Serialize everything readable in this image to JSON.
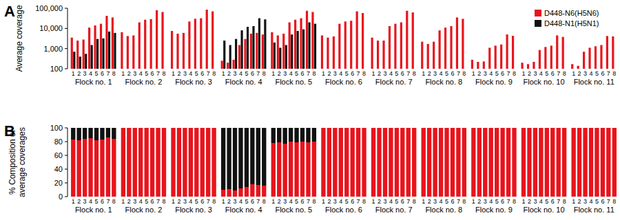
{
  "chart_data": [
    {
      "type": "bar",
      "title": "A",
      "ylabel": "Average coverage",
      "log": "y",
      "ylim": [
        100,
        100000
      ],
      "yticks": [
        100,
        {
          "value": 1000,
          "label": "1,000"
        },
        {
          "value": 10000,
          "label": "10,000"
        },
        {
          "value": 100000,
          "label": "100,000"
        }
      ],
      "categories": [
        "1",
        "2",
        "3",
        "4",
        "5",
        "6",
        "7",
        "8",
        "1",
        "2",
        "3",
        "4",
        "5",
        "6",
        "7",
        "8",
        "1",
        "2",
        "3",
        "4",
        "5",
        "6",
        "7",
        "8",
        "1",
        "2",
        "3",
        "4",
        "5",
        "6",
        "7",
        "8",
        "1",
        "2",
        "3",
        "4",
        "5",
        "6",
        "7",
        "8",
        "1",
        "2",
        "3",
        "4",
        "5",
        "6",
        "7",
        "8",
        "1",
        "2",
        "3",
        "4",
        "5",
        "6",
        "7",
        "8",
        "1",
        "2",
        "3",
        "4",
        "5",
        "6",
        "7",
        "8",
        "1",
        "2",
        "3",
        "4",
        "5",
        "6",
        "7",
        "8",
        "1",
        "2",
        "3",
        "4",
        "5",
        "6",
        "7",
        "8",
        "1",
        "2",
        "3",
        "4",
        "5",
        "6",
        "7",
        "8"
      ],
      "groups": [
        "Flock no. 1",
        "Flock no. 2",
        "Flock no. 3",
        "Flock no. 4",
        "Flock no. 5",
        "Flock no. 6",
        "Flock no. 7",
        "Flock no. 8",
        "Flock no. 9",
        "Flock no. 10",
        "Flock no. 11"
      ],
      "legend": "upper right",
      "series": [
        {
          "name": "D448-N6(H5N6)",
          "color": "#e8141c",
          "values": [
            3500,
            2500,
            2800,
            11000,
            14000,
            17000,
            42000,
            35000,
            6500,
            4200,
            4500,
            20000,
            27000,
            29000,
            80000,
            65000,
            7500,
            5500,
            6000,
            22000,
            30000,
            32000,
            85000,
            70000,
            250,
            200,
            280,
            1500,
            3000,
            5500,
            6000,
            5000,
            6500,
            4500,
            5500,
            20000,
            27000,
            32000,
            75000,
            65000,
            4500,
            3500,
            4000,
            17000,
            22000,
            24000,
            70000,
            58000,
            3500,
            2500,
            2500,
            13000,
            17000,
            20000,
            75000,
            62000,
            2200,
            1700,
            2200,
            8000,
            11000,
            13000,
            35000,
            30000,
            280,
            220,
            230,
            1100,
            1400,
            1600,
            5000,
            4300,
            200,
            170,
            220,
            850,
            1200,
            1400,
            4500,
            3800,
            170,
            140,
            700,
            1100,
            1300,
            1500,
            4200,
            4000
          ]
        },
        {
          "name": "D448-N1(H5N1)",
          "color": "#111111",
          "values": [
            700,
            400,
            550,
            1500,
            3000,
            3200,
            7000,
            6000,
            null,
            null,
            null,
            null,
            null,
            null,
            null,
            null,
            null,
            null,
            null,
            null,
            null,
            null,
            null,
            null,
            2500,
            1500,
            3000,
            8000,
            12000,
            13000,
            32000,
            28000,
            2000,
            1100,
            1500,
            5000,
            7500,
            9000,
            20000,
            17000,
            null,
            null,
            null,
            null,
            null,
            null,
            null,
            null,
            null,
            null,
            null,
            null,
            null,
            null,
            null,
            null,
            null,
            null,
            null,
            null,
            null,
            null,
            null,
            null,
            null,
            null,
            null,
            null,
            null,
            null,
            null,
            null,
            null,
            null,
            null,
            null,
            null,
            null,
            null,
            null,
            null,
            null,
            null,
            null,
            null,
            null,
            null,
            null
          ]
        }
      ]
    },
    {
      "type": "bar",
      "title": "B",
      "ylabel": "% Composition of average coverages",
      "stacked": true,
      "ylim": [
        0,
        100
      ],
      "yticks": [
        0,
        20,
        40,
        60,
        80,
        100
      ],
      "categories": [
        "1",
        "2",
        "3",
        "4",
        "5",
        "6",
        "7",
        "8",
        "1",
        "2",
        "3",
        "4",
        "5",
        "6",
        "7",
        "8",
        "1",
        "2",
        "3",
        "4",
        "5",
        "6",
        "7",
        "8",
        "1",
        "2",
        "3",
        "4",
        "5",
        "6",
        "7",
        "8",
        "1",
        "2",
        "3",
        "4",
        "5",
        "6",
        "7",
        "8",
        "1",
        "2",
        "3",
        "4",
        "5",
        "6",
        "7",
        "8",
        "1",
        "2",
        "3",
        "4",
        "5",
        "6",
        "7",
        "8",
        "1",
        "2",
        "3",
        "4",
        "5",
        "6",
        "7",
        "8",
        "1",
        "2",
        "3",
        "4",
        "5",
        "6",
        "7",
        "8",
        "1",
        "2",
        "3",
        "4",
        "5",
        "6",
        "7",
        "8",
        "1",
        "2",
        "3",
        "4",
        "5",
        "6",
        "7",
        "8"
      ],
      "groups": [
        "Flock no. 1",
        "Flock no. 2",
        "Flock no. 3",
        "Flock no. 4",
        "Flock no. 5",
        "Flock no. 6",
        "Flock no. 7",
        "Flock no. 8",
        "Flock no. 9",
        "Flock no. 10",
        "Flock no. 11"
      ],
      "series": [
        {
          "color": "#e8141c",
          "values": [
            83,
            82,
            84,
            85,
            82,
            83,
            86,
            84,
            100,
            100,
            100,
            100,
            100,
            100,
            100,
            100,
            100,
            100,
            100,
            100,
            100,
            100,
            100,
            100,
            10,
            11,
            9,
            12,
            14,
            18,
            17,
            16,
            78,
            79,
            77,
            80,
            79,
            80,
            79,
            80,
            100,
            100,
            100,
            100,
            100,
            100,
            100,
            100,
            100,
            100,
            100,
            100,
            100,
            100,
            100,
            100,
            100,
            100,
            100,
            100,
            100,
            100,
            100,
            100,
            100,
            100,
            100,
            100,
            100,
            100,
            100,
            100,
            100,
            100,
            100,
            100,
            100,
            100,
            100,
            100,
            100,
            100,
            100,
            100,
            100,
            100,
            100,
            100
          ]
        },
        {
          "color": "#111111",
          "values": [
            17,
            18,
            16,
            15,
            18,
            17,
            14,
            16,
            0,
            0,
            0,
            0,
            0,
            0,
            0,
            0,
            0,
            0,
            0,
            0,
            0,
            0,
            0,
            0,
            90,
            89,
            91,
            88,
            86,
            82,
            83,
            84,
            22,
            21,
            23,
            20,
            21,
            20,
            21,
            20,
            0,
            0,
            0,
            0,
            0,
            0,
            0,
            0,
            0,
            0,
            0,
            0,
            0,
            0,
            0,
            0,
            0,
            0,
            0,
            0,
            0,
            0,
            0,
            0,
            0,
            0,
            0,
            0,
            0,
            0,
            0,
            0,
            0,
            0,
            0,
            0,
            0,
            0,
            0,
            0,
            0,
            0,
            0,
            0,
            0,
            0,
            0,
            0
          ]
        }
      ]
    }
  ]
}
